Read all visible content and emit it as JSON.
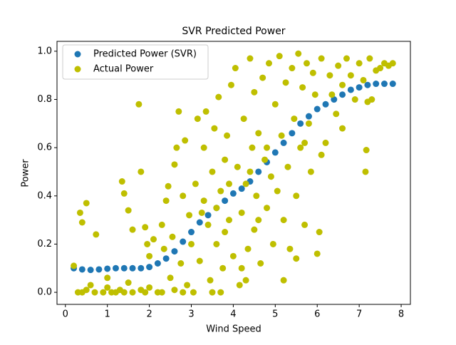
{
  "chart_data": {
    "type": "scatter",
    "title": "SVR Predicted Power",
    "x_label": "Wind Speed",
    "y_label": "Power",
    "xlim": [
      -0.2,
      8.22
    ],
    "ylim": [
      -0.05,
      1.041
    ],
    "xticks": [
      0,
      1,
      2,
      3,
      4,
      5,
      6,
      7,
      8
    ],
    "yticks": [
      {
        "value": 0,
        "label": "0.0"
      },
      0.2,
      0.4,
      0.6,
      0.8,
      {
        "value": 1,
        "label": "1.0"
      }
    ],
    "legend": "upper left",
    "series": [
      {
        "name": "Predicted Power (SVR)",
        "color": "#1f77b4",
        "x": [
          0.2,
          0.4,
          0.6,
          0.8,
          1.0,
          1.2,
          1.4,
          1.6,
          1.8,
          2.0,
          2.2,
          2.4,
          2.6,
          2.8,
          3.0,
          3.2,
          3.4,
          3.6,
          3.8,
          4.0,
          4.2,
          4.4,
          4.6,
          4.8,
          5.0,
          5.2,
          5.4,
          5.6,
          5.8,
          6.0,
          6.2,
          6.4,
          6.6,
          6.8,
          7.0,
          7.2,
          7.4,
          7.6,
          7.8
        ],
        "values": [
          0.1,
          0.095,
          0.093,
          0.095,
          0.098,
          0.1,
          0.1,
          0.1,
          0.1,
          0.105,
          0.12,
          0.14,
          0.17,
          0.21,
          0.25,
          0.29,
          0.32,
          0.35,
          0.38,
          0.41,
          0.43,
          0.46,
          0.5,
          0.54,
          0.58,
          0.62,
          0.66,
          0.7,
          0.73,
          0.76,
          0.78,
          0.8,
          0.82,
          0.84,
          0.85,
          0.86,
          0.865,
          0.865,
          0.865
        ]
      },
      {
        "name": "Actual Power",
        "color": "#bfbf00",
        "x": [
          0.3,
          0.4,
          0.5,
          0.6,
          0.7,
          0.9,
          1.0,
          1.1,
          1.2,
          1.3,
          1.4,
          1.5,
          1.6,
          1.8,
          1.9,
          2.0,
          0.2,
          0.35,
          0.4,
          0.5,
          0.73,
          1.0,
          1.35,
          1.4,
          1.5,
          1.6,
          1.75,
          1.8,
          1.9,
          1.95,
          2.0,
          2.1,
          2.2,
          2.3,
          2.35,
          2.4,
          2.45,
          2.5,
          2.55,
          2.6,
          2.65,
          2.7,
          2.75,
          2.8,
          2.85,
          2.9,
          2.95,
          3.0,
          2.3,
          2.6,
          2.8,
          3.05,
          3.1,
          3.15,
          3.2,
          3.25,
          3.3,
          3.35,
          3.4,
          3.45,
          3.5,
          3.55,
          3.6,
          3.65,
          3.7,
          3.75,
          3.8,
          3.85,
          3.9,
          3.95,
          4.0,
          3.3,
          3.5,
          3.7,
          3.9,
          3.6,
          3.8,
          4.05,
          4.1,
          4.15,
          4.2,
          4.25,
          4.3,
          4.35,
          4.4,
          4.45,
          4.5,
          4.55,
          4.6,
          4.65,
          4.7,
          4.75,
          4.8,
          4.85,
          4.9,
          4.95,
          5.0,
          4.2,
          4.4,
          4.6,
          4.8,
          4.3,
          4.5,
          5.05,
          5.1,
          5.15,
          5.2,
          5.25,
          5.3,
          5.35,
          5.4,
          5.45,
          5.5,
          5.55,
          5.6,
          5.65,
          5.7,
          5.75,
          5.8,
          5.85,
          5.9,
          5.95,
          6.0,
          5.2,
          5.5,
          5.7,
          6.05,
          6.1,
          6.2,
          6.3,
          6.35,
          6.45,
          6.5,
          6.6,
          6.7,
          6.8,
          6.9,
          7.0,
          7.1,
          7.15,
          7.17,
          7.2,
          7.25,
          7.3,
          7.4,
          7.5,
          7.6,
          7.7,
          7.8,
          6.1,
          6.6
        ],
        "values": [
          0,
          0,
          0.01,
          0.03,
          0,
          0,
          0.02,
          0,
          0,
          0.01,
          0,
          0.04,
          0,
          0.01,
          0,
          0.02,
          0.11,
          0.33,
          0.29,
          0.37,
          0.24,
          0.06,
          0.46,
          0.41,
          0.34,
          0.26,
          0.78,
          0.5,
          0.27,
          0.2,
          0.15,
          0.22,
          0,
          0.28,
          0.18,
          0.38,
          0.44,
          0.06,
          0.23,
          0.53,
          0.6,
          0.75,
          0.12,
          0.4,
          0.63,
          0.03,
          0.32,
          0.2,
          0,
          0.01,
          0,
          0,
          0.45,
          0.72,
          0.13,
          0.33,
          0.6,
          0.75,
          0.28,
          0.05,
          0.5,
          0.68,
          0.2,
          0.81,
          0.42,
          0.1,
          0.55,
          0.65,
          0.3,
          0.86,
          0.15,
          0.38,
          0,
          0,
          0.45,
          0.35,
          0.25,
          0.93,
          0.52,
          0.03,
          0.33,
          0.72,
          0.45,
          0.18,
          0.97,
          0.6,
          0.26,
          0.4,
          0.66,
          0.12,
          0.89,
          0.55,
          0.35,
          0.95,
          0.48,
          0.2,
          0.78,
          0.1,
          0.5,
          0.3,
          0.6,
          0.05,
          0.83,
          0.42,
          0.98,
          0.65,
          0.3,
          0.87,
          0.52,
          0.18,
          0.93,
          0.72,
          0.4,
          0.99,
          0.6,
          0.85,
          0.28,
          0.95,
          0.7,
          0.5,
          0.91,
          0.82,
          0.16,
          0.05,
          0.14,
          0.62,
          0.25,
          0.97,
          0.62,
          0.9,
          0.82,
          0.74,
          0.94,
          0.86,
          0.97,
          0.9,
          0.8,
          0.95,
          0.88,
          0.5,
          0.59,
          0.79,
          0.97,
          0.8,
          0.92,
          0.93,
          0.95,
          0.94,
          0.95,
          0.57,
          0.68
        ]
      }
    ]
  }
}
